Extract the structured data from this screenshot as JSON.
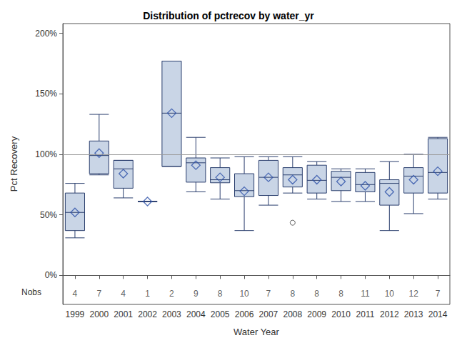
{
  "chart_data": {
    "type": "boxplot",
    "title": "Distribution of pctrecov by water_yr",
    "x_label": "Water Year",
    "y_label": "Pct Recovery",
    "categories": [
      "1999",
      "2000",
      "2001",
      "2002",
      "2003",
      "2004",
      "2005",
      "2006",
      "2007",
      "2008",
      "2009",
      "2010",
      "2011",
      "2012",
      "2013",
      "2014"
    ],
    "boxes": [
      [
        31,
        37,
        52,
        68,
        76
      ],
      [
        83,
        84,
        99,
        111,
        133
      ],
      [
        64,
        72,
        88,
        95,
        95
      ],
      [
        61,
        61,
        61,
        61,
        61
      ],
      [
        90,
        90,
        134,
        177,
        177
      ],
      [
        69,
        77,
        93,
        97,
        114
      ],
      [
        63,
        76.5,
        79,
        89,
        97
      ],
      [
        37,
        65,
        70,
        84,
        98
      ],
      [
        58,
        66,
        81,
        95,
        98
      ],
      [
        68,
        73,
        83,
        89,
        98
      ],
      [
        63,
        68,
        78.5,
        91,
        94
      ],
      [
        61,
        70,
        81,
        86,
        88
      ],
      [
        61,
        69,
        75,
        85,
        88
      ],
      [
        37,
        58,
        76,
        79,
        94
      ],
      [
        51,
        68,
        82,
        89,
        100
      ],
      [
        63,
        68,
        85,
        113,
        114
      ]
    ],
    "means": [
      52,
      101,
      84,
      61,
      134,
      91,
      81,
      69.5,
      81,
      79,
      79,
      77.5,
      74,
      69,
      79,
      86
    ],
    "marker": "diamond",
    "outliers": [
      {
        "category": "2008",
        "value": 43.5
      }
    ],
    "nobs_label": "Nobs",
    "nobs": [
      4,
      7,
      4,
      1,
      2,
      9,
      8,
      10,
      7,
      8,
      8,
      8,
      11,
      10,
      12,
      7
    ],
    "reference_line": 100,
    "ylim": [
      -24,
      208
    ],
    "yticks": [
      {
        "value": 0,
        "label": "0%"
      },
      {
        "value": 50,
        "label": "50%"
      },
      {
        "value": 100,
        "label": "100%"
      },
      {
        "value": 150,
        "label": "150%"
      },
      {
        "value": 200,
        "label": "200%"
      }
    ],
    "color": "#c9d5e6",
    "grid": false
  }
}
